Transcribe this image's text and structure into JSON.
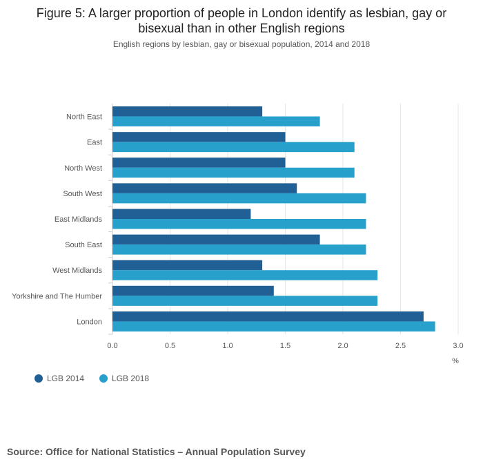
{
  "chart_data": {
    "type": "bar",
    "orientation": "horizontal",
    "title": "Figure 5: A larger proportion of people in London identify as lesbian, gay or bisexual than in other English regions",
    "subtitle": "English regions by lesbian, gay or bisexual population, 2014 and 2018",
    "categories": [
      "North East",
      "East",
      "North West",
      "South West",
      "East Midlands",
      "South East",
      "West Midlands",
      "Yorkshire and The Humber",
      "London"
    ],
    "series": [
      {
        "name": "LGB 2014",
        "color": "#206095",
        "values": [
          1.3,
          1.5,
          1.5,
          1.6,
          1.2,
          1.8,
          1.3,
          1.4,
          2.7
        ]
      },
      {
        "name": "LGB 2018",
        "color": "#27a0cc",
        "values": [
          1.8,
          2.1,
          2.1,
          2.2,
          2.2,
          2.2,
          2.3,
          2.3,
          2.8
        ]
      }
    ],
    "xlim": [
      0,
      3
    ],
    "xticks": [
      "0.0",
      "0.5",
      "1.0",
      "1.5",
      "2.0",
      "2.5",
      "3.0"
    ],
    "xlabel": "%",
    "ylabel": "",
    "grid": true,
    "legend_position": "bottom-left"
  },
  "source": "Source: Office for National Statistics – Annual Population Survey"
}
